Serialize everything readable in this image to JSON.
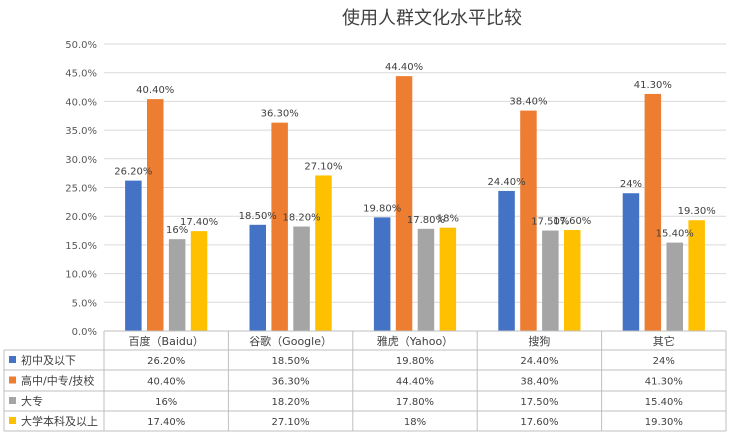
{
  "chart_data": {
    "type": "bar",
    "title": "使用人群文化水平比较",
    "categories": [
      "百度（Baidu）",
      "谷歌（Google）",
      "雅虎（Yahoo）",
      "搜狗",
      "其它"
    ],
    "ylim": [
      0,
      50
    ],
    "yticks": [
      "0.0%",
      "5.0%",
      "10.0%",
      "15.0%",
      "20.0%",
      "25.0%",
      "30.0%",
      "35.0%",
      "40.0%",
      "45.0%",
      "50.0%"
    ],
    "grid": true,
    "legend": "data-table",
    "series": [
      {
        "name": "初中及以下",
        "color": "#4472C4",
        "values": [
          26.2,
          18.5,
          19.8,
          24.4,
          24.0
        ],
        "labels": [
          "26.20%",
          "18.50%",
          "19.80%",
          "24.40%",
          "24%"
        ]
      },
      {
        "name": "高中/中专/技校",
        "color": "#ED7D31",
        "values": [
          40.4,
          36.3,
          44.4,
          38.4,
          41.3
        ],
        "labels": [
          "40.40%",
          "36.30%",
          "44.40%",
          "38.40%",
          "41.30%"
        ]
      },
      {
        "name": "大专",
        "color": "#A5A5A5",
        "values": [
          16.0,
          18.2,
          17.8,
          17.5,
          15.4
        ],
        "labels": [
          "16%",
          "18.20%",
          "17.80%",
          "17.50%",
          "15.40%"
        ]
      },
      {
        "name": "大学本科及以上",
        "color": "#FFC000",
        "values": [
          17.4,
          27.1,
          18.0,
          17.6,
          19.3
        ],
        "labels": [
          "17.40%",
          "27.10%",
          "18%",
          "17.60%",
          "19.30%"
        ]
      }
    ]
  }
}
